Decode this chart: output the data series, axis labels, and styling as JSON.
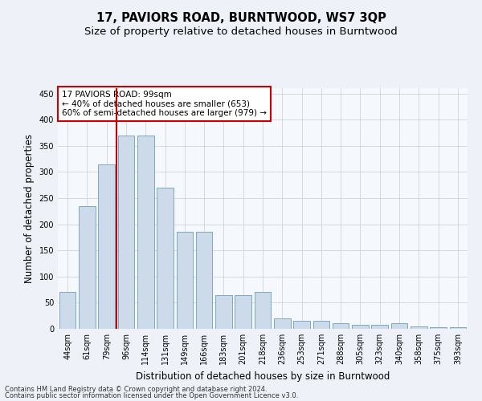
{
  "title": "17, PAVIORS ROAD, BURNTWOOD, WS7 3QP",
  "subtitle": "Size of property relative to detached houses in Burntwood",
  "xlabel": "Distribution of detached houses by size in Burntwood",
  "ylabel": "Number of detached properties",
  "categories": [
    "44sqm",
    "61sqm",
    "79sqm",
    "96sqm",
    "114sqm",
    "131sqm",
    "149sqm",
    "166sqm",
    "183sqm",
    "201sqm",
    "218sqm",
    "236sqm",
    "253sqm",
    "271sqm",
    "288sqm",
    "305sqm",
    "323sqm",
    "340sqm",
    "358sqm",
    "375sqm",
    "393sqm"
  ],
  "values": [
    70,
    235,
    315,
    370,
    370,
    270,
    185,
    185,
    65,
    65,
    70,
    20,
    15,
    15,
    10,
    8,
    8,
    10,
    5,
    3,
    3
  ],
  "bar_color": "#cddaea",
  "bar_edge_color": "#6b9fc0",
  "vline_x": 2.5,
  "annotation_line1": "17 PAVIORS ROAD: 99sqm",
  "annotation_line2": "← 40% of detached houses are smaller (653)",
  "annotation_line3": "60% of semi-detached houses are larger (979) →",
  "annotation_box_color": "#ffffff",
  "annotation_box_edge": "#cc0000",
  "vline_color": "#cc0000",
  "ylim": [
    0,
    460
  ],
  "yticks": [
    0,
    50,
    100,
    150,
    200,
    250,
    300,
    350,
    400,
    450
  ],
  "footer1": "Contains HM Land Registry data © Crown copyright and database right 2024.",
  "footer2": "Contains public sector information licensed under the Open Government Licence v3.0.",
  "bg_color": "#eef2f8",
  "plot_bg_color": "#f5f8fd",
  "grid_color": "#cccccc",
  "title_fontsize": 10.5,
  "subtitle_fontsize": 9.5,
  "tick_fontsize": 7,
  "ylabel_fontsize": 8.5,
  "xlabel_fontsize": 8.5,
  "footer_fontsize": 6,
  "annot_fontsize": 7.5
}
